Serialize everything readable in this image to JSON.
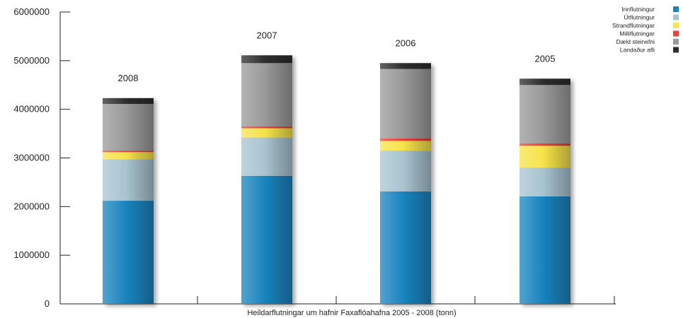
{
  "chart_data": {
    "type": "bar",
    "stacked": true,
    "categories": [
      "2008",
      "2007",
      "2006",
      "2005"
    ],
    "series": [
      {
        "name": "Innflutningur",
        "color": "#1a84bf",
        "values": [
          2120000,
          2630000,
          2310000,
          2210000
        ]
      },
      {
        "name": "Útflutningur",
        "color": "#a9c4d0",
        "values": [
          850000,
          790000,
          840000,
          590000
        ]
      },
      {
        "name": "Strandflutningar",
        "color": "#f7e34a",
        "values": [
          150000,
          190000,
          200000,
          450000
        ]
      },
      {
        "name": "Milliflutningar",
        "color": "#e8423a",
        "values": [
          30000,
          40000,
          50000,
          50000
        ]
      },
      {
        "name": "Dæld steinefni",
        "color": "#9a9a9a",
        "values": [
          960000,
          1300000,
          1430000,
          1200000
        ]
      },
      {
        "name": "Landaður afli",
        "color": "#2e2e2e",
        "values": [
          120000,
          160000,
          120000,
          130000
        ]
      }
    ],
    "ylim": [
      0,
      6000000
    ],
    "yticks": [
      0,
      1000000,
      2000000,
      3000000,
      4000000,
      5000000,
      6000000
    ],
    "ytick_labels": [
      "0",
      "1000000",
      "2000000",
      "3000000",
      "4000000",
      "5000000",
      "6000000"
    ],
    "title": "",
    "xlabel": "Heildarflutningar um hafnir Faxaflóahafna  2005 - 2008 (tonn)",
    "ylabel": "",
    "grid": false,
    "legend": "top-right"
  }
}
